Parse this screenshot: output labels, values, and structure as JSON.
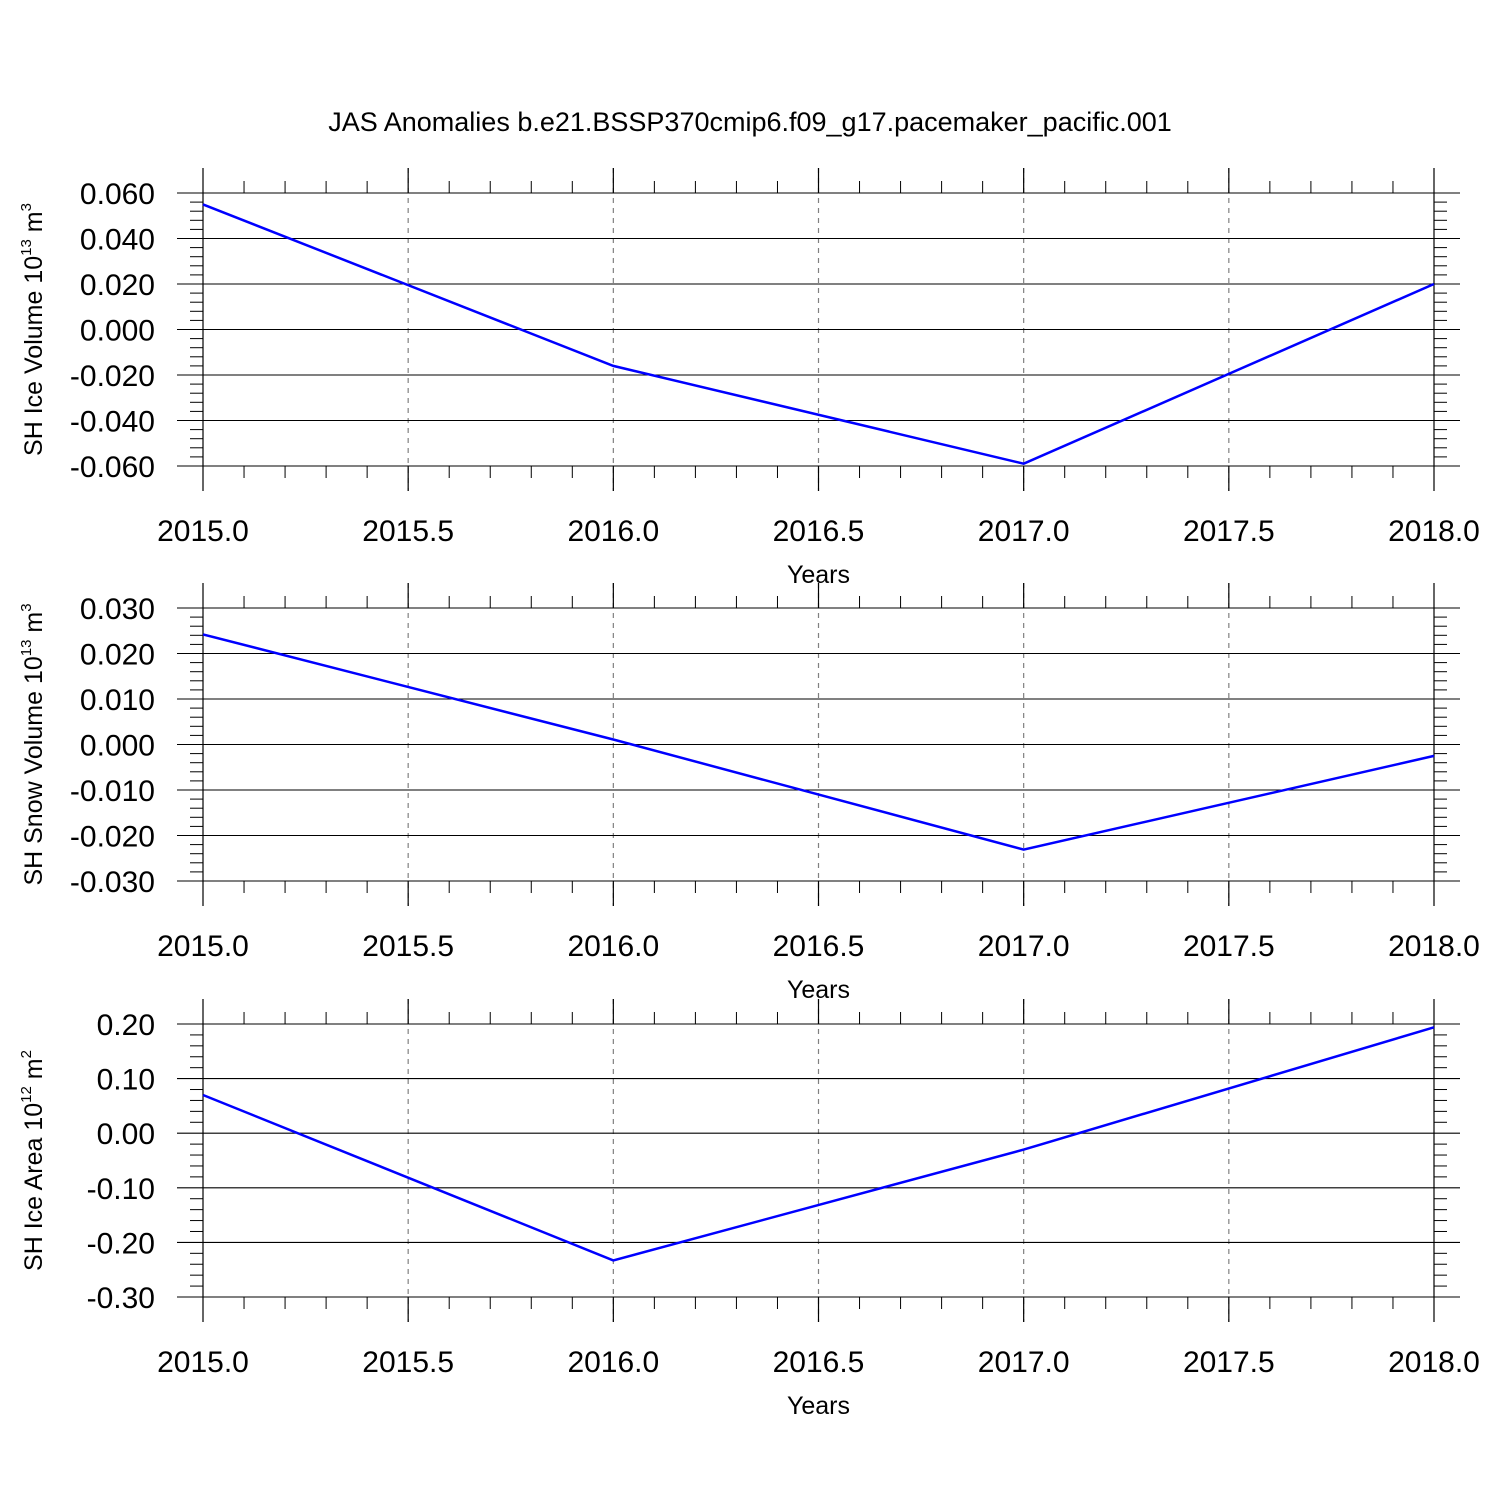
{
  "title": "JAS Anomalies b.e21.BSSP370cmip6.f09_g17.pacemaker_pacific.001",
  "colors": {
    "line": "#0000ff",
    "axes": "#000000",
    "grid": "#808080"
  },
  "chart_data": [
    {
      "type": "line",
      "ylabel": {
        "main": "SH Ice Volume 10",
        "exponent": "13",
        "unit": " m",
        "unit_exponent": "3"
      },
      "xlabel": "Years",
      "xlim": [
        2015.0,
        2018.0
      ],
      "ylim": [
        -0.06,
        0.06
      ],
      "x_ticks": [
        "2015.0",
        "2015.5",
        "2016.0",
        "2016.5",
        "2017.0",
        "2017.5",
        "2018.0"
      ],
      "y_ticks": [
        "0.060",
        "0.040",
        "0.020",
        "0.000",
        "-0.020",
        "-0.040",
        "-0.060"
      ],
      "grid": "vertical dashed",
      "series": [
        {
          "x": [
            2015,
            2016,
            2017,
            2018
          ],
          "y": [
            0.055,
            -0.016,
            -0.059,
            0.02
          ]
        }
      ]
    },
    {
      "type": "line",
      "ylabel": {
        "main": "SH Snow Volume 10",
        "exponent": "13",
        "unit": " m",
        "unit_exponent": "3"
      },
      "xlabel": "Years",
      "xlim": [
        2015.0,
        2018.0
      ],
      "ylim": [
        -0.03,
        0.03
      ],
      "x_ticks": [
        "2015.0",
        "2015.5",
        "2016.0",
        "2016.5",
        "2017.0",
        "2017.5",
        "2018.0"
      ],
      "y_ticks": [
        "0.030",
        "0.020",
        "0.010",
        "0.000",
        "-0.010",
        "-0.020",
        "-0.030"
      ],
      "grid": "vertical dashed",
      "series": [
        {
          "x": [
            2015,
            2016,
            2017,
            2018
          ],
          "y": [
            0.0242,
            0.0011,
            -0.0231,
            -0.0025
          ]
        }
      ]
    },
    {
      "type": "line",
      "ylabel": {
        "main": "SH Ice Area 10",
        "exponent": "12",
        "unit": " m",
        "unit_exponent": "2"
      },
      "xlabel": "Years",
      "xlim": [
        2015.0,
        2018.0
      ],
      "ylim": [
        -0.3,
        0.2
      ],
      "x_ticks": [
        "2015.0",
        "2015.5",
        "2016.0",
        "2016.5",
        "2017.0",
        "2017.5",
        "2018.0"
      ],
      "y_ticks": [
        "0.20",
        "0.10",
        "0.00",
        "-0.10",
        "-0.20",
        "-0.30"
      ],
      "grid": "vertical dashed",
      "series": [
        {
          "x": [
            2015,
            2016,
            2017,
            2018
          ],
          "y": [
            0.07,
            -0.233,
            -0.03,
            0.194
          ]
        }
      ]
    }
  ]
}
